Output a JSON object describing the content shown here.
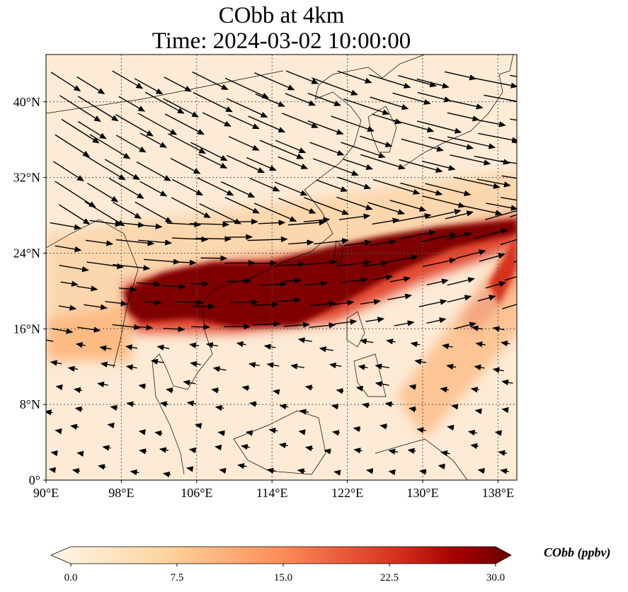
{
  "title": {
    "line1": "CObb at 4km",
    "line2": "Time: 2024-03-02 10:00:00"
  },
  "map": {
    "extent": {
      "lon": [
        90,
        140
      ],
      "lat": [
        0,
        45
      ]
    },
    "lon_ticks": [
      {
        "v": 90,
        "label": "90°E"
      },
      {
        "v": 98,
        "label": "98°E"
      },
      {
        "v": 106,
        "label": "106°E"
      },
      {
        "v": 114,
        "label": "114°E"
      },
      {
        "v": 122,
        "label": "122°E"
      },
      {
        "v": 130,
        "label": "130°E"
      },
      {
        "v": 138,
        "label": "138°E"
      }
    ],
    "lat_ticks": [
      {
        "v": 0,
        "label": "0°"
      },
      {
        "v": 8,
        "label": "8°N"
      },
      {
        "v": 16,
        "label": "16°N"
      },
      {
        "v": 24,
        "label": "24°N"
      },
      {
        "v": 32,
        "label": "32°N"
      },
      {
        "v": 40,
        "label": "40°N"
      }
    ]
  },
  "colorbar": {
    "label": "CObb (ppbv)",
    "range": [
      0,
      30
    ],
    "extend": "both",
    "ticks": [
      "0.0",
      "7.5",
      "15.0",
      "22.5",
      "30.0"
    ],
    "colors": [
      "#fff5eb",
      "#fdd49e",
      "#fc8d59",
      "#d7301f",
      "#a50000",
      "#7f0000"
    ]
  }
}
